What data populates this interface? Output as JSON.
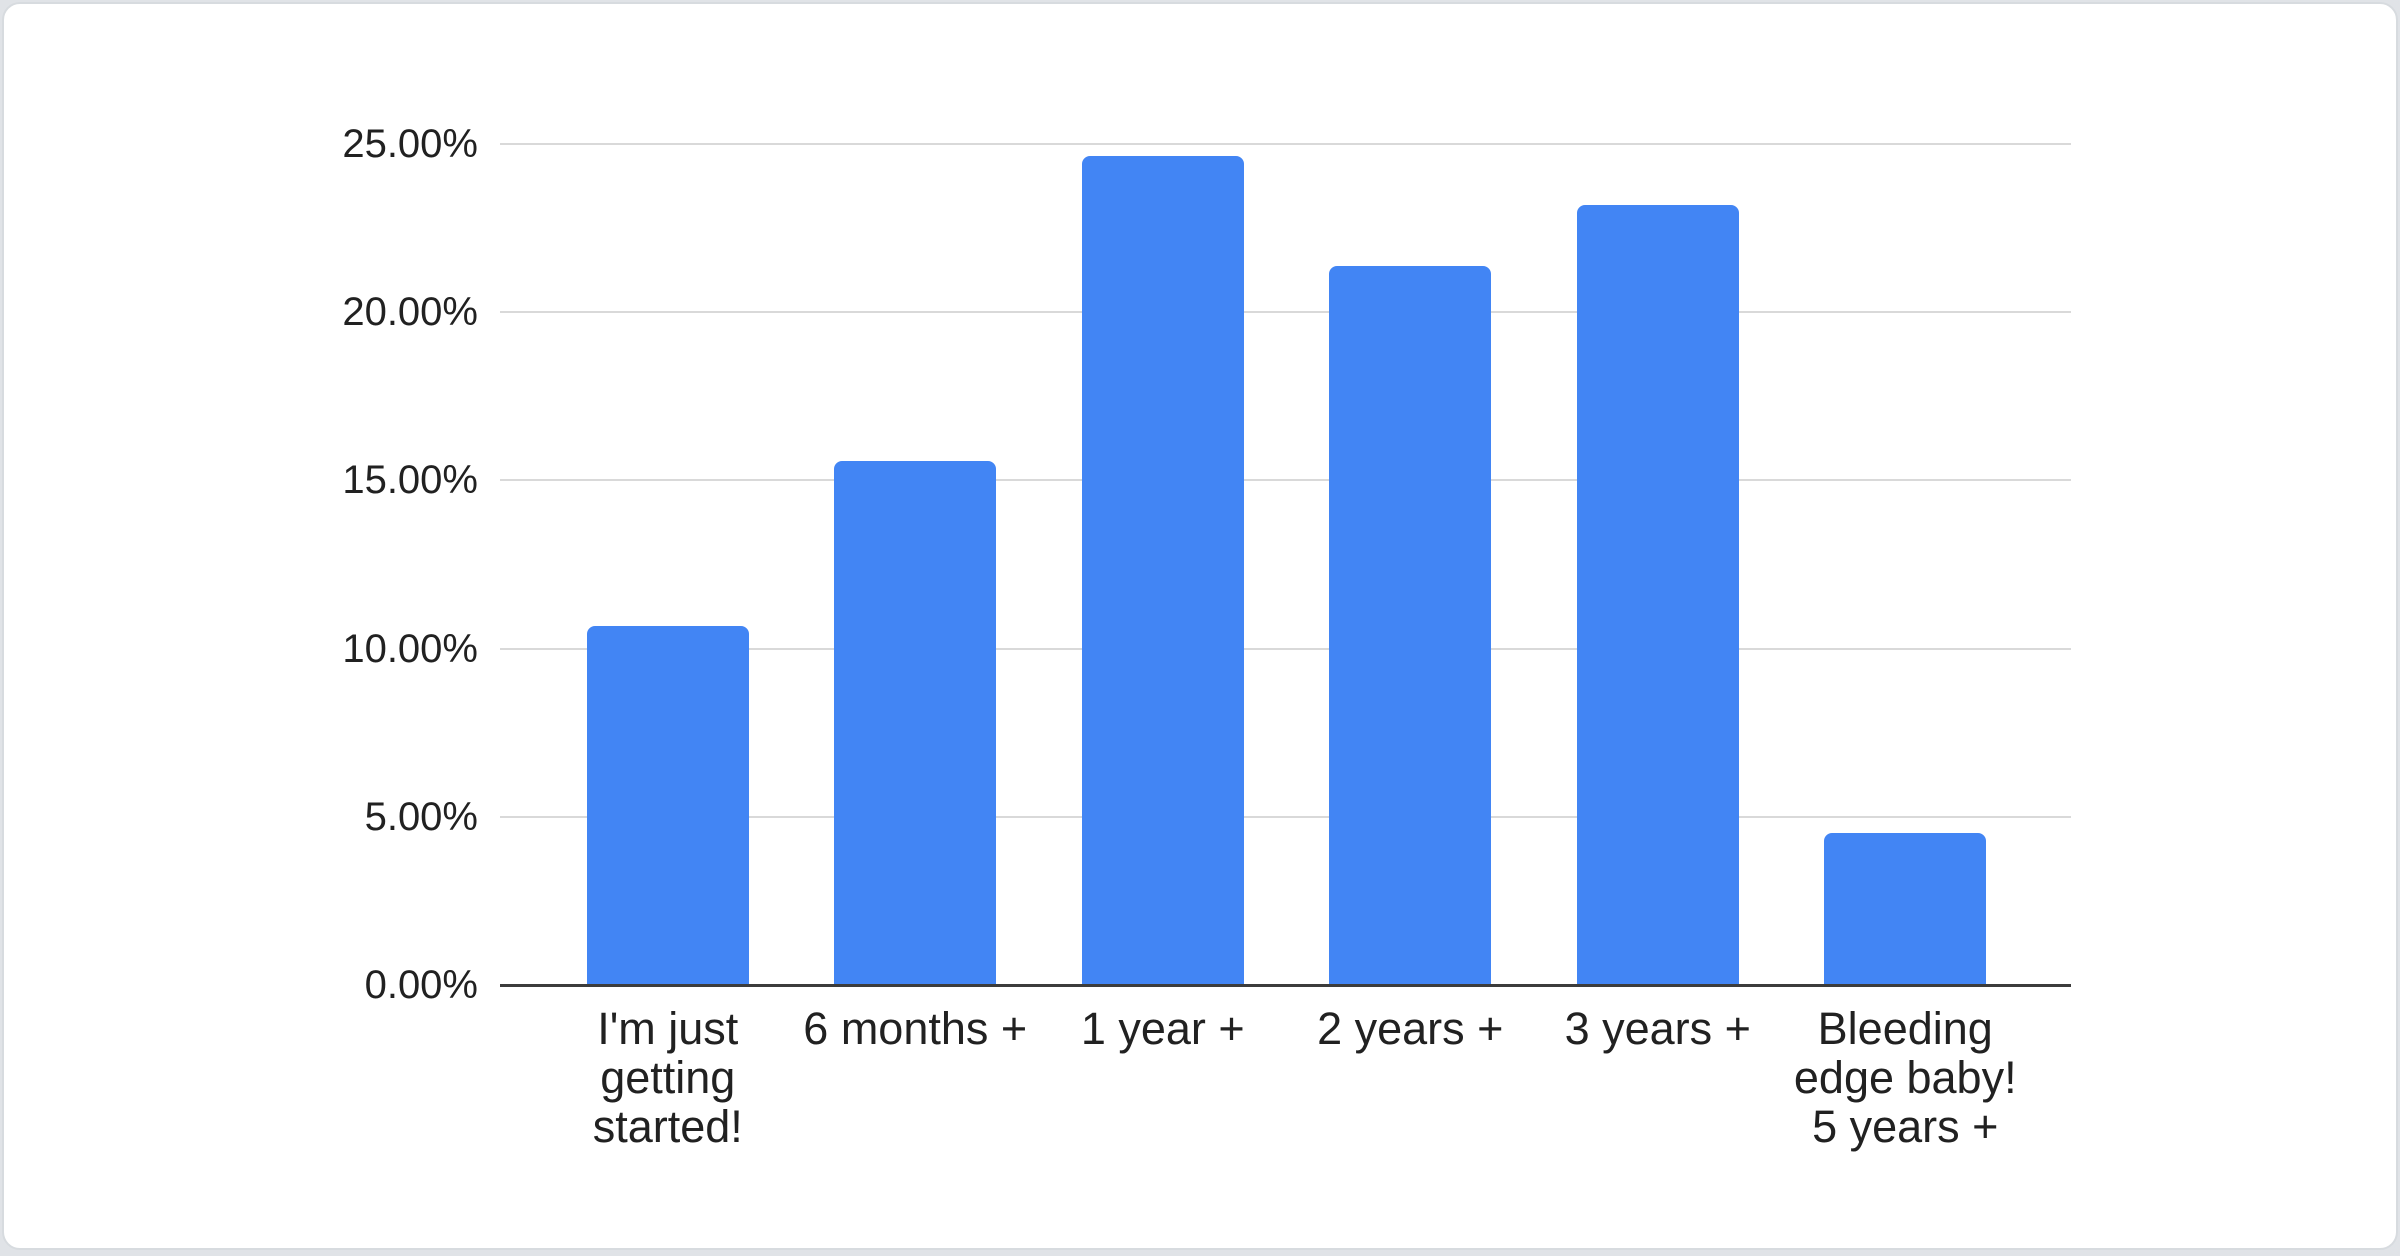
{
  "chart_data": {
    "type": "bar",
    "title": "",
    "xlabel": "",
    "ylabel": "",
    "categories": [
      "I'm just getting started!",
      "6 months +",
      "1 year +",
      "2 years +",
      "3 years +",
      "Bleeding edge baby! 5 years +"
    ],
    "values": [
      10.66,
      15.57,
      24.64,
      21.37,
      23.19,
      4.51
    ],
    "value_unit": "%",
    "ylim": [
      0,
      25
    ],
    "y_ticks": [
      0,
      5,
      10,
      15,
      20,
      25
    ],
    "y_tick_labels": [
      "0.00%",
      "5.00%",
      "10.00%",
      "15.00%",
      "20.00%",
      "25.00%"
    ],
    "grid": true,
    "legend": "none",
    "colors": {
      "bar": "#4285f4",
      "gridline": "#d9d9d9",
      "axis_line": "#3c3c3c",
      "label_text": "#212121",
      "card_background": "#ffffff",
      "card_border": "#d7dbdf",
      "page_background": "#e0e3e7"
    }
  }
}
